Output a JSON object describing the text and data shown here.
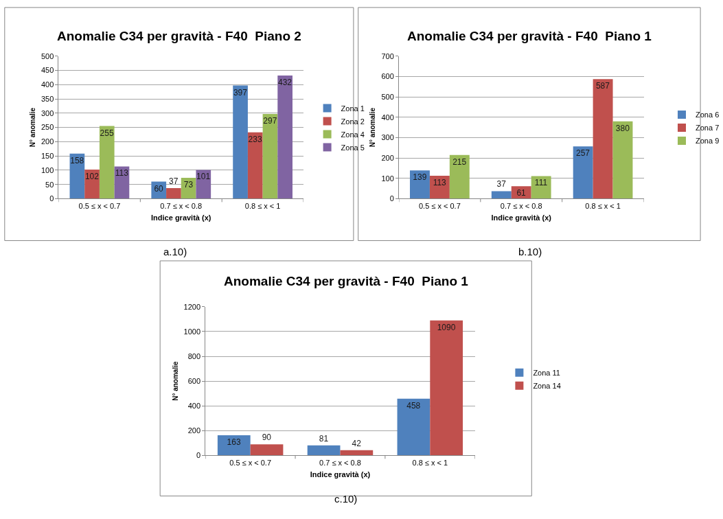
{
  "chart_data": [
    {
      "type": "bar",
      "title": "Anomalie C34 per gravità - F40  Piano 2",
      "xlabel": "Indice gravità (x)",
      "ylabel": "N° anomalie",
      "categories": [
        "0.5 ≤ x < 0.7",
        "0.7 ≤ x < 0.8",
        "0.8 ≤ x < 1"
      ],
      "series": [
        {
          "name": "Zona 1",
          "color": "#4f81bd",
          "values": [
            158,
            60,
            397
          ]
        },
        {
          "name": "Zona 2",
          "color": "#c0504d",
          "values": [
            102,
            37,
            233
          ]
        },
        {
          "name": "Zona 4",
          "color": "#9bbb59",
          "values": [
            255,
            73,
            297
          ]
        },
        {
          "name": "Zona 5",
          "color": "#8064a2",
          "values": [
            113,
            101,
            432
          ]
        }
      ],
      "ylim": [
        0,
        500
      ],
      "yticks": [
        0,
        50,
        100,
        150,
        200,
        250,
        300,
        350,
        400,
        450,
        500
      ],
      "grid": "y",
      "legend": "right",
      "data_labels": true,
      "annotations": [
        "a.10)"
      ]
    },
    {
      "type": "bar",
      "title": "Anomalie C34 per gravità - F40  Piano 1",
      "xlabel": "Indice gravità (x)",
      "ylabel": "N° anomalie",
      "categories": [
        "0.5 ≤ x < 0.7",
        "0.7 ≤ x < 0.8",
        "0.8 ≤ x < 1"
      ],
      "series": [
        {
          "name": "Zona 6",
          "color": "#4f81bd",
          "values": [
            139,
            37,
            257
          ]
        },
        {
          "name": "Zona 7",
          "color": "#c0504d",
          "values": [
            113,
            61,
            587
          ]
        },
        {
          "name": "Zona 9",
          "color": "#9bbb59",
          "values": [
            215,
            111,
            380
          ]
        }
      ],
      "ylim": [
        0,
        700
      ],
      "yticks": [
        0,
        100,
        200,
        300,
        400,
        500,
        600,
        700
      ],
      "grid": "y",
      "legend": "right",
      "data_labels": true,
      "annotations": [
        "b.10)"
      ]
    },
    {
      "type": "bar",
      "title": "Anomalie C34 per gravità - F40  Piano 1",
      "xlabel": "Indice gravità (x)",
      "ylabel": "N° anomalie",
      "categories": [
        "0.5 ≤ x < 0.7",
        "0.7 ≤ x < 0.8",
        "0.8 ≤ x < 1"
      ],
      "series": [
        {
          "name": "Zona 11",
          "color": "#4f81bd",
          "values": [
            163,
            81,
            458
          ]
        },
        {
          "name": "Zona 14",
          "color": "#c0504d",
          "values": [
            90,
            42,
            1090
          ]
        }
      ],
      "ylim": [
        0,
        1200
      ],
      "yticks": [
        0,
        200,
        400,
        600,
        800,
        1000,
        1200
      ],
      "grid": "y",
      "legend": "right",
      "data_labels": true,
      "annotations": [
        "c.10)"
      ]
    }
  ]
}
